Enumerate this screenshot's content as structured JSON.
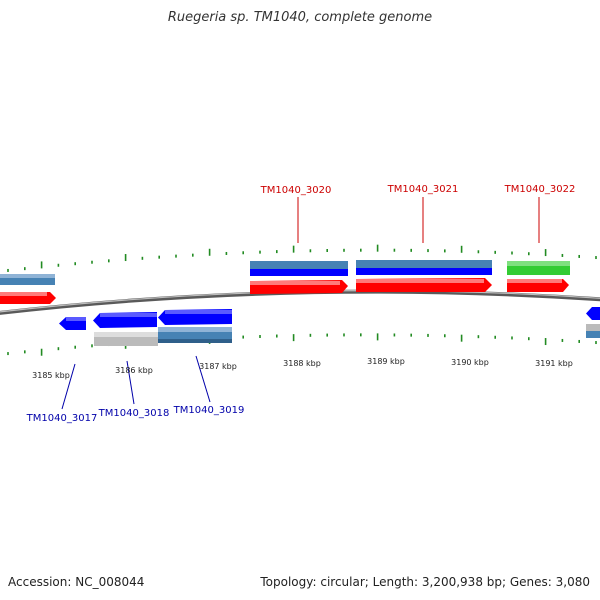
{
  "title": "Ruegeria sp. TM1040, complete genome",
  "footer": {
    "accession": "Accession: NC_008044",
    "summary": "Topology: circular; Length: 3,200,938 bp; Genes: 3,080"
  },
  "colors": {
    "forward_cds": "#ff0000",
    "reverse_cds": "#0000ff",
    "gene_forward": "#4682b4",
    "gene_reverse": "#4682b4",
    "rna": "#33cc33",
    "pseudo": "#bbbbbb",
    "backbone": "#777777",
    "ticks": "#228b22",
    "label_forward": "#cc0000",
    "label_reverse": "#0000aa"
  },
  "scale": {
    "labels": [
      "3185 kbp",
      "3186 kbp",
      "3187 kbp",
      "3188 kbp",
      "3189 kbp",
      "3190 kbp",
      "3191 kbp"
    ]
  },
  "genes_forward": [
    {
      "name": "TM1040_3020",
      "color": "forward_cds",
      "upper": "gene_forward"
    },
    {
      "name": "TM1040_3021",
      "color": "forward_cds",
      "upper": "gene_forward"
    },
    {
      "name": "TM1040_3022",
      "color": "forward_cds",
      "upper": "rna"
    }
  ],
  "genes_reverse": [
    {
      "name": "TM1040_3017"
    },
    {
      "name": "TM1040_3018"
    },
    {
      "name": "TM1040_3019"
    }
  ]
}
